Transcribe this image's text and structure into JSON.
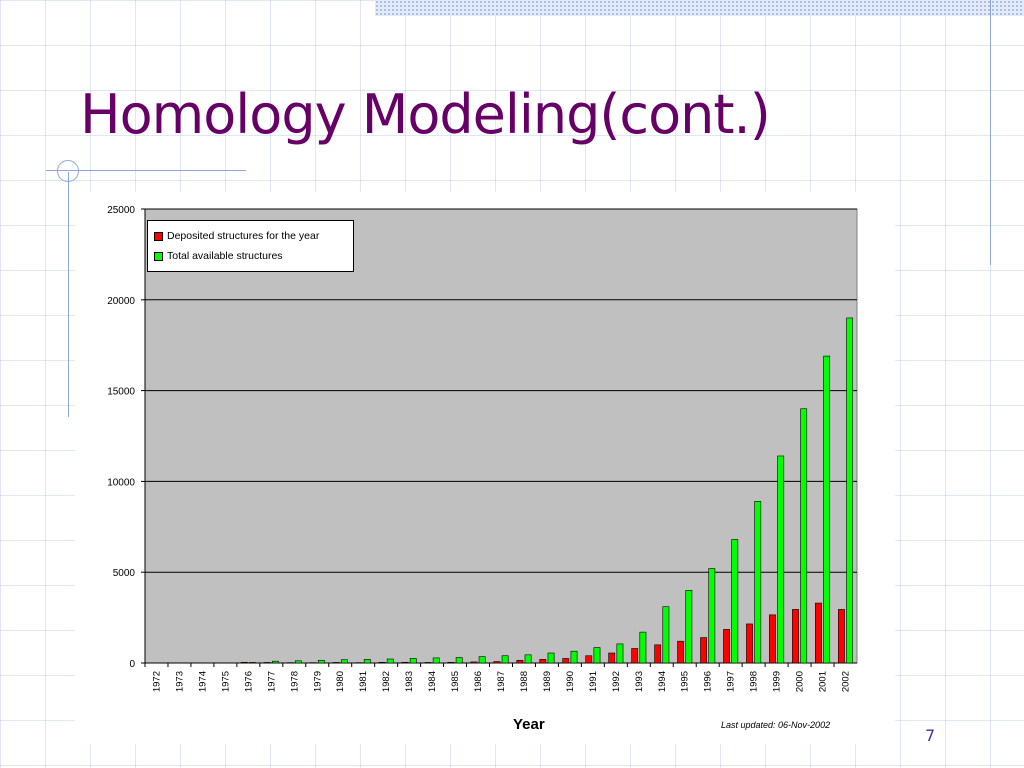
{
  "slide": {
    "title": "Homology Modeling(cont.)",
    "page_number": "7"
  },
  "colors": {
    "title": "#660066",
    "plot_background": "#c0c0c0",
    "deposited": "#ff0000",
    "total": "#00ff00"
  },
  "chart_data": {
    "type": "bar",
    "xlabel": "Year",
    "ylabel": "",
    "ylim": [
      0,
      25000
    ],
    "yticks": [
      0,
      5000,
      10000,
      15000,
      20000,
      25000
    ],
    "grid": true,
    "legend_position": "top-left",
    "annotation": "Last updated: 06-Nov-2002",
    "categories": [
      "1972",
      "1973",
      "1974",
      "1975",
      "1976",
      "1977",
      "1978",
      "1979",
      "1980",
      "1981",
      "1982",
      "1983",
      "1984",
      "1985",
      "1986",
      "1987",
      "1988",
      "1989",
      "1990",
      "1991",
      "1992",
      "1993",
      "1994",
      "1995",
      "1996",
      "1997",
      "1998",
      "1999",
      "2000",
      "2001",
      "2002"
    ],
    "series": [
      {
        "name": "Deposited structures for the year",
        "color": "#ff0000",
        "values": [
          0,
          0,
          0,
          0,
          40,
          30,
          20,
          20,
          30,
          20,
          40,
          40,
          30,
          40,
          60,
          80,
          150,
          200,
          250,
          400,
          550,
          800,
          1000,
          1200,
          1400,
          1850,
          2150,
          2650,
          2950,
          3300,
          2950
        ]
      },
      {
        "name": "Total available structures",
        "color": "#00ff00",
        "values": [
          0,
          0,
          0,
          0,
          30,
          100,
          120,
          150,
          180,
          200,
          220,
          250,
          280,
          300,
          350,
          400,
          450,
          550,
          650,
          850,
          1050,
          1700,
          3100,
          4000,
          5200,
          6800,
          8900,
          11400,
          14000,
          16900,
          19000
        ]
      }
    ]
  }
}
